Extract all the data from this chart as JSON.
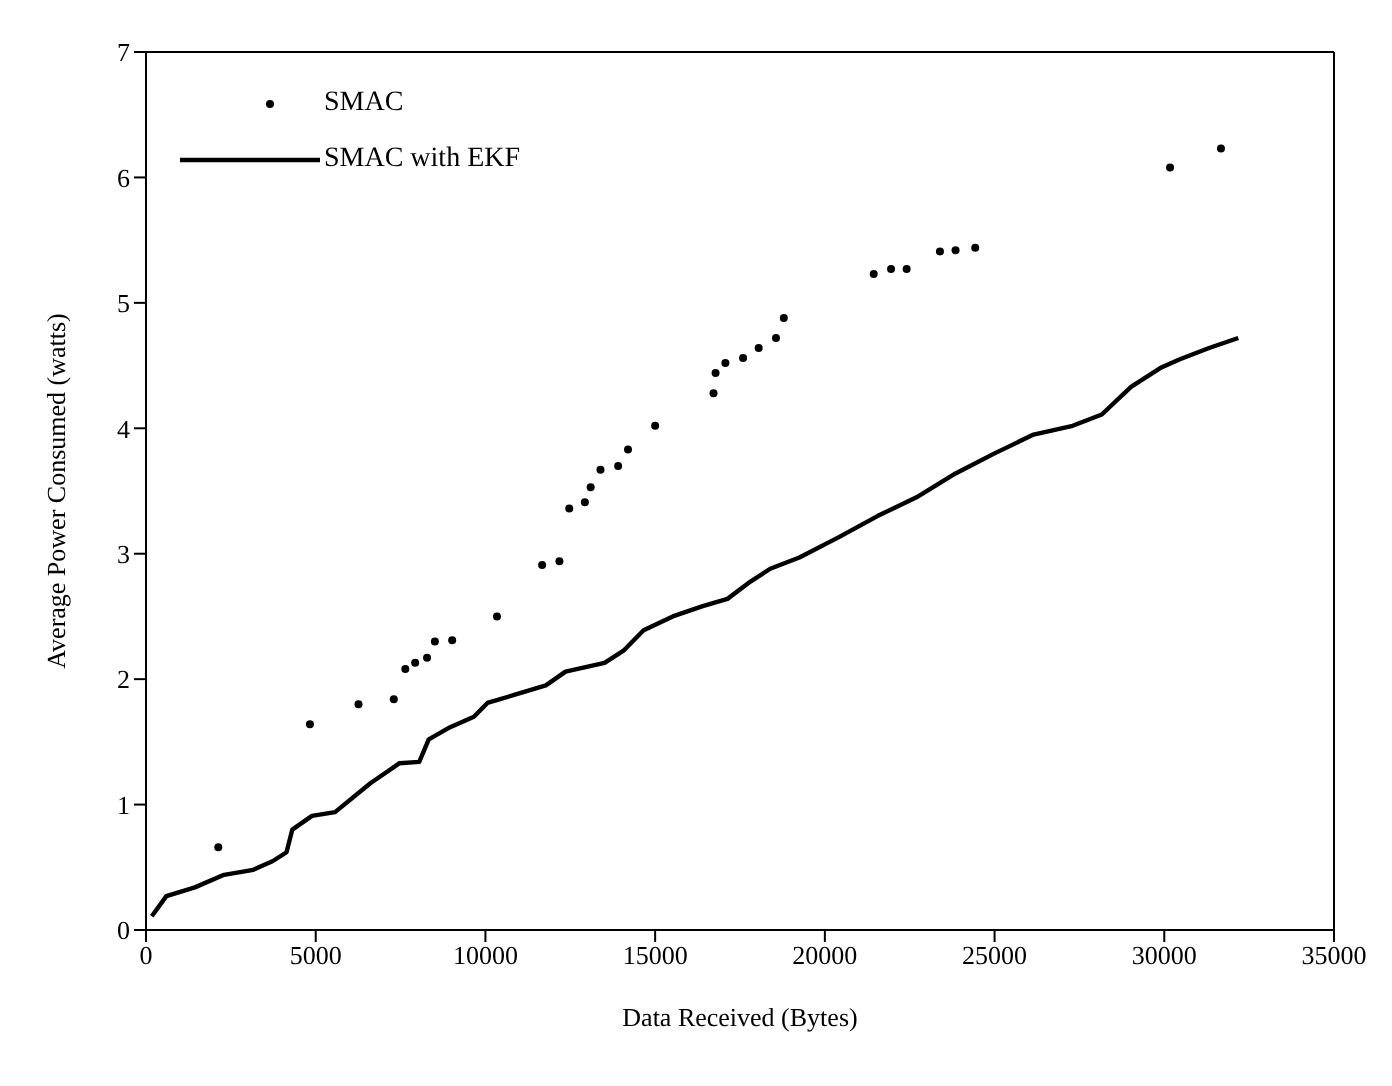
{
  "chart_data": {
    "type": "line",
    "xlabel": "Data Received (Bytes)",
    "ylabel": "Average Power Consumed (watts)",
    "xlim": [
      0,
      35000
    ],
    "xticks": [
      0,
      5000,
      10000,
      15000,
      20000,
      25000,
      30000,
      35000
    ],
    "ylim": [
      0,
      7
    ],
    "yticks": [
      0,
      1,
      2,
      3,
      4,
      5,
      6,
      7
    ],
    "grid": false,
    "legend": "top left",
    "series": [
      {
        "name": "SMAC",
        "type": "scatter",
        "marker": "circle",
        "color": "#000000",
        "x": [
          2130,
          4830,
          6260,
          7300,
          7640,
          7930,
          8280,
          8510,
          9020,
          10340,
          11670,
          12180,
          12470,
          12930,
          13100,
          13390,
          13910,
          14200,
          15000,
          16720,
          16780,
          17070,
          17590,
          18050,
          18560,
          18790,
          21440,
          21950,
          22410,
          23390,
          23850,
          24430,
          30170,
          31670
        ],
        "values": [
          0.66,
          1.64,
          1.8,
          1.84,
          2.08,
          2.13,
          2.17,
          2.3,
          2.31,
          2.5,
          2.91,
          2.94,
          3.36,
          3.41,
          3.53,
          3.67,
          3.7,
          3.83,
          4.02,
          4.28,
          4.44,
          4.52,
          4.56,
          4.64,
          4.72,
          4.88,
          5.23,
          5.27,
          5.27,
          5.41,
          5.42,
          5.44,
          6.08,
          6.23
        ]
      },
      {
        "name": "SMAC with EKF",
        "marker": "none",
        "line_style": "solid",
        "color": "#000000",
        "x": [
          170,
          600,
          1440,
          2300,
          3160,
          3740,
          4140,
          4310,
          4890,
          5570,
          6610,
          7470,
          8050,
          8330,
          8910,
          9660,
          10060,
          10920,
          11780,
          12360,
          13510,
          14080,
          14660,
          15520,
          16380,
          17130,
          17820,
          18390,
          19250,
          20400,
          21550,
          22700,
          23850,
          25000,
          26150,
          27300,
          28160,
          29020,
          29880,
          30460,
          31320,
          32180
        ],
        "values": [
          0.11,
          0.27,
          0.34,
          0.44,
          0.48,
          0.55,
          0.62,
          0.8,
          0.91,
          0.94,
          1.17,
          1.33,
          1.34,
          1.52,
          1.61,
          1.7,
          1.81,
          1.88,
          1.95,
          2.06,
          2.13,
          2.23,
          2.39,
          2.5,
          2.58,
          2.64,
          2.78,
          2.88,
          2.97,
          3.13,
          3.3,
          3.45,
          3.64,
          3.8,
          3.95,
          4.02,
          4.11,
          4.33,
          4.48,
          4.55,
          4.64,
          4.72
        ]
      }
    ]
  }
}
